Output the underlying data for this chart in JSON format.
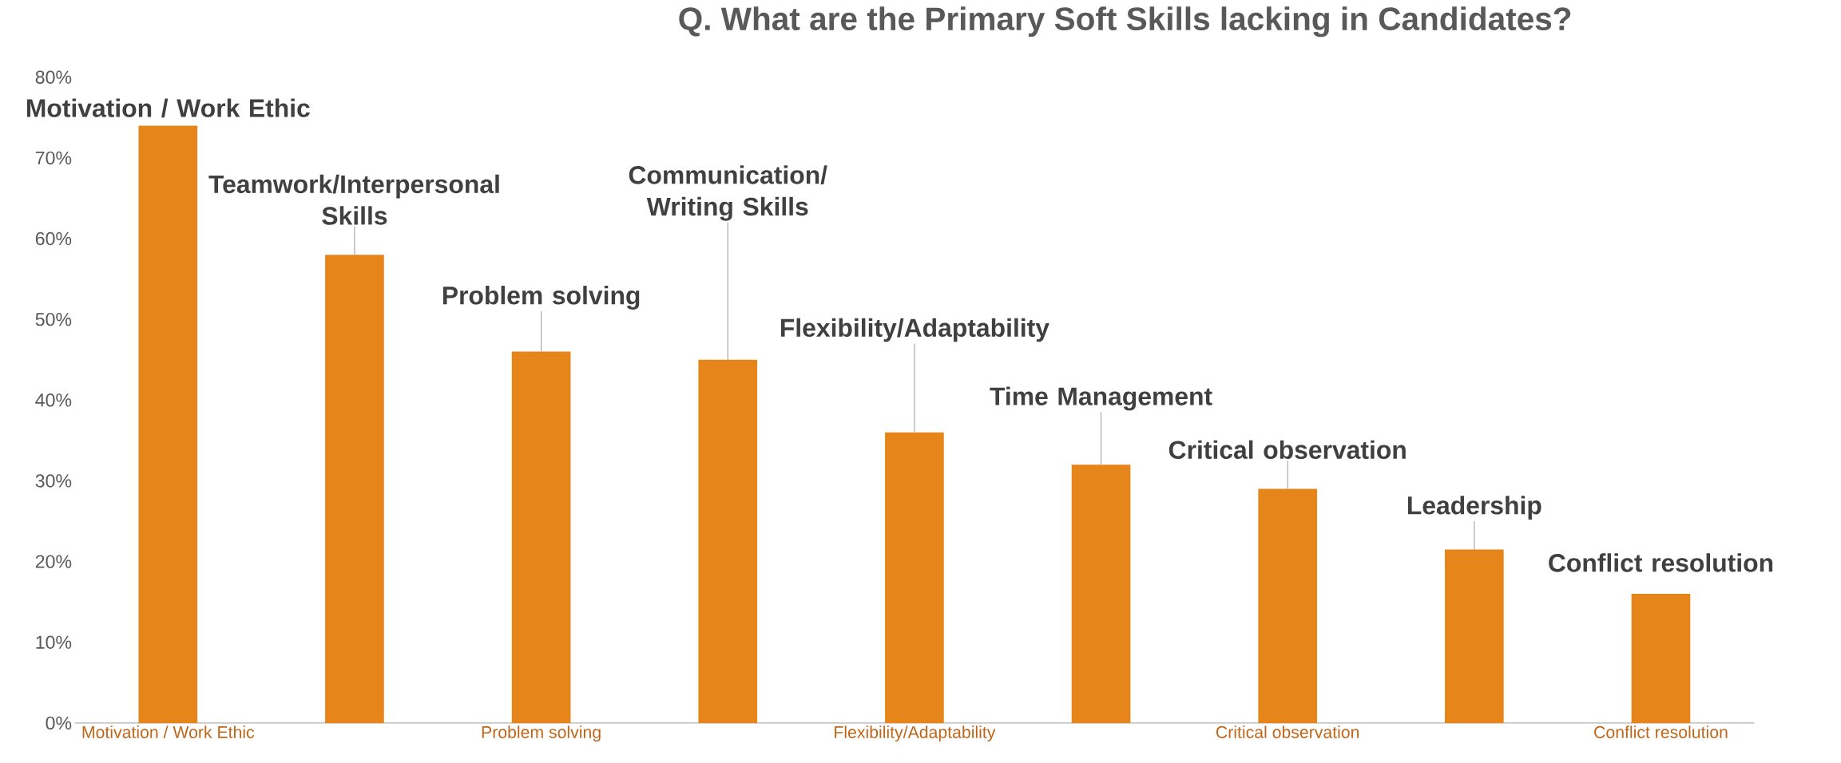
{
  "chart_data": {
    "type": "bar",
    "title": "Q. What are the Primary Soft Skills lacking in Candidates?",
    "categories": [
      "Motivation / Work Ethic",
      null,
      "Problem solving",
      null,
      "Flexibility/Adaptability",
      null,
      "Critical observation",
      null,
      "Conflict resolution"
    ],
    "values": [
      74,
      58,
      46,
      45,
      36,
      32,
      29,
      21.5,
      16
    ],
    "color": "#e6861a",
    "ylim": [
      0,
      80
    ],
    "yticks": [
      {
        "value": 0,
        "label": "0%"
      },
      {
        "value": 10,
        "label": "10%"
      },
      {
        "value": 20,
        "label": "20%"
      },
      {
        "value": 30,
        "label": "30%"
      },
      {
        "value": 40,
        "label": "40%"
      },
      {
        "value": 50,
        "label": "50%"
      },
      {
        "value": 60,
        "label": "60%"
      },
      {
        "value": 70,
        "label": "70%"
      },
      {
        "value": 80,
        "label": "80%"
      }
    ],
    "annotations": [
      {
        "text": "Motivation / Work Ethic",
        "y": 74
      },
      {
        "text": "Teamwork/Interpersonal Skills",
        "y": 58
      },
      {
        "text": "Problem solving",
        "y": 46
      },
      {
        "text": "Communication/ Writing Skills",
        "y": 45
      },
      {
        "text": "Flexibility/Adaptability",
        "y": 36
      },
      {
        "text": "Time Management",
        "y": 32
      },
      {
        "text": "Critical observation",
        "y": 29
      },
      {
        "text": "Leadership",
        "y": 21.5
      },
      {
        "text": "Conflict resolution",
        "y": 16
      }
    ]
  }
}
